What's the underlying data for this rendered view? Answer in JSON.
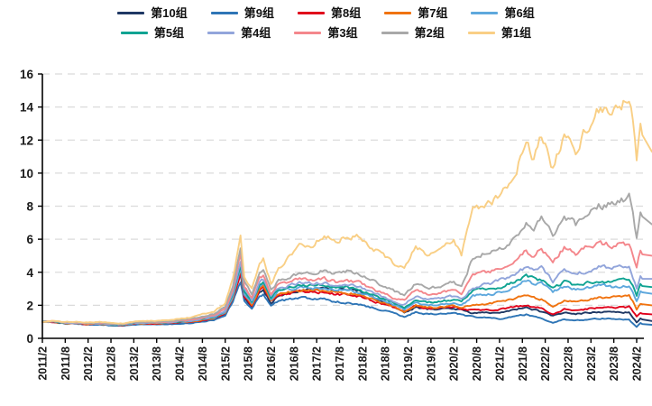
{
  "chart_data": {
    "type": "line",
    "title": "",
    "xlabel": "",
    "ylabel": "",
    "ylim": [
      0,
      16
    ],
    "y_ticks": [
      0,
      2,
      4,
      6,
      8,
      10,
      12,
      14,
      16
    ],
    "x_tick_labels": [
      "2011/2",
      "2011/8",
      "2012/2",
      "2012/8",
      "2013/2",
      "2013/8",
      "2014/2",
      "2014/8",
      "2015/2",
      "2015/8",
      "2016/2",
      "2016/8",
      "2017/2",
      "2017/8",
      "2018/2",
      "2018/8",
      "2019/2",
      "2019/8",
      "2020/2",
      "2020/8",
      "2021/2",
      "2021/8",
      "2022/2",
      "2022/8",
      "2023/2",
      "2023/8",
      "2024/2"
    ],
    "legend_position": "top",
    "legend_rows": [
      [
        "第10组",
        "第9组",
        "第8组",
        "第7组",
        "第6组"
      ],
      [
        "第5组",
        "第4组",
        "第3组",
        "第2组",
        "第1组"
      ]
    ],
    "grid": "horizontal-dashed",
    "grid_color": "#DBDBDB",
    "axis_color": "#000000",
    "x": [
      "2011/2",
      "2011/5",
      "2011/8",
      "2011/11",
      "2012/2",
      "2012/5",
      "2012/8",
      "2012/11",
      "2013/2",
      "2013/5",
      "2013/8",
      "2013/11",
      "2014/2",
      "2014/5",
      "2014/8",
      "2014/11",
      "2015/2",
      "2015/4",
      "2015/6",
      "2015/7",
      "2015/9",
      "2015/11",
      "2015/12",
      "2016/2",
      "2016/4",
      "2016/7",
      "2016/10",
      "2017/1",
      "2017/4",
      "2017/7",
      "2017/10",
      "2018/1",
      "2018/4",
      "2018/7",
      "2018/10",
      "2019/1",
      "2019/4",
      "2019/7",
      "2019/10",
      "2020/2",
      "2020/4",
      "2020/7",
      "2020/9",
      "2020/12",
      "2021/2",
      "2021/5",
      "2021/9",
      "2021/11",
      "2022/1",
      "2022/4",
      "2022/7",
      "2022/10",
      "2023/1",
      "2023/4",
      "2023/8",
      "2023/12",
      "2024/1",
      "2024/2",
      "2024/3",
      "2024/4"
    ],
    "series": [
      {
        "name": "第10组",
        "color": "#1F3864",
        "values": [
          1.0,
          0.98,
          0.9,
          0.89,
          0.84,
          0.86,
          0.79,
          0.77,
          0.86,
          0.88,
          0.87,
          0.9,
          0.94,
          0.96,
          1.07,
          1.17,
          1.47,
          2.35,
          3.8,
          2.4,
          1.9,
          2.8,
          2.95,
          2.15,
          2.6,
          2.75,
          2.9,
          2.95,
          3.1,
          2.95,
          3.0,
          2.85,
          2.55,
          2.25,
          1.98,
          1.52,
          1.88,
          1.76,
          1.77,
          1.82,
          1.72,
          1.5,
          1.55,
          1.55,
          1.6,
          1.7,
          1.85,
          1.75,
          1.6,
          1.35,
          1.55,
          1.48,
          1.55,
          1.6,
          1.6,
          1.55,
          1.2,
          0.95,
          1.2,
          1.05
        ]
      },
      {
        "name": "第9组",
        "color": "#2E75B6",
        "values": [
          1.0,
          0.97,
          0.89,
          0.87,
          0.82,
          0.84,
          0.77,
          0.75,
          0.83,
          0.84,
          0.83,
          0.86,
          0.89,
          0.91,
          1.01,
          1.1,
          1.38,
          2.2,
          3.45,
          2.2,
          1.75,
          2.55,
          2.66,
          1.95,
          2.3,
          2.36,
          2.42,
          2.36,
          2.35,
          2.2,
          2.18,
          2.06,
          1.9,
          1.72,
          1.55,
          1.28,
          1.58,
          1.46,
          1.47,
          1.52,
          1.44,
          1.3,
          1.3,
          1.25,
          1.2,
          1.3,
          1.45,
          1.35,
          1.2,
          0.95,
          1.15,
          1.08,
          1.15,
          1.2,
          1.2,
          1.15,
          0.9,
          0.7,
          0.95,
          0.82
        ]
      },
      {
        "name": "第8组",
        "color": "#E0001B",
        "values": [
          1.0,
          0.99,
          0.91,
          0.9,
          0.85,
          0.88,
          0.81,
          0.79,
          0.88,
          0.9,
          0.89,
          0.92,
          0.96,
          0.98,
          1.1,
          1.2,
          1.51,
          2.42,
          4.0,
          2.52,
          1.97,
          2.92,
          3.06,
          2.21,
          2.65,
          2.75,
          2.84,
          2.8,
          2.82,
          2.66,
          2.67,
          2.55,
          2.33,
          2.11,
          1.89,
          1.57,
          1.95,
          1.8,
          1.82,
          1.9,
          1.8,
          1.7,
          1.72,
          1.7,
          1.75,
          1.85,
          2.0,
          1.9,
          1.8,
          1.5,
          1.75,
          1.68,
          1.78,
          1.85,
          1.85,
          1.9,
          1.6,
          1.3,
          1.55,
          1.45
        ]
      },
      {
        "name": "第7组",
        "color": "#F07310",
        "values": [
          1.0,
          1.0,
          0.92,
          0.91,
          0.86,
          0.89,
          0.82,
          0.8,
          0.89,
          0.91,
          0.9,
          0.93,
          0.98,
          1.0,
          1.12,
          1.23,
          1.55,
          2.5,
          4.15,
          2.6,
          2.04,
          3.02,
          3.16,
          2.28,
          2.73,
          2.84,
          2.94,
          2.9,
          2.92,
          2.76,
          2.77,
          2.65,
          2.42,
          2.19,
          1.96,
          1.63,
          2.0,
          1.86,
          1.88,
          1.97,
          1.86,
          2.0,
          2.05,
          2.1,
          2.2,
          2.35,
          2.6,
          2.45,
          2.35,
          1.95,
          2.3,
          2.2,
          2.35,
          2.45,
          2.5,
          2.55,
          2.2,
          1.75,
          2.15,
          2.0
        ]
      },
      {
        "name": "第6组",
        "color": "#5EA8DD",
        "values": [
          1.0,
          1.0,
          0.93,
          0.92,
          0.87,
          0.9,
          0.83,
          0.81,
          0.9,
          0.92,
          0.92,
          0.95,
          1.0,
          1.03,
          1.15,
          1.26,
          1.6,
          2.6,
          4.35,
          2.72,
          2.12,
          3.15,
          3.3,
          2.37,
          2.85,
          2.97,
          3.08,
          3.04,
          3.07,
          2.9,
          2.92,
          2.8,
          2.56,
          2.31,
          2.07,
          1.74,
          2.15,
          2.0,
          2.02,
          2.12,
          2.0,
          2.55,
          2.62,
          2.7,
          2.8,
          3.0,
          3.5,
          3.3,
          3.3,
          2.8,
          3.15,
          2.95,
          3.1,
          3.2,
          3.1,
          3.15,
          2.8,
          2.25,
          2.85,
          2.7
        ]
      },
      {
        "name": "第5组",
        "color": "#0FA392",
        "values": [
          1.0,
          1.01,
          0.93,
          0.93,
          0.88,
          0.91,
          0.84,
          0.82,
          0.92,
          0.94,
          0.93,
          0.97,
          1.02,
          1.05,
          1.18,
          1.3,
          1.65,
          2.7,
          4.55,
          2.85,
          2.2,
          3.28,
          3.45,
          2.46,
          2.97,
          3.1,
          3.22,
          3.18,
          3.22,
          3.05,
          3.08,
          2.95,
          2.7,
          2.44,
          2.18,
          1.9,
          2.35,
          2.17,
          2.2,
          2.33,
          2.18,
          2.85,
          2.92,
          3.0,
          3.1,
          3.35,
          3.8,
          3.6,
          3.5,
          3.0,
          3.4,
          3.2,
          3.4,
          3.5,
          3.45,
          3.5,
          3.1,
          2.6,
          3.3,
          3.1
        ]
      },
      {
        "name": "第4组",
        "color": "#92A5DB",
        "values": [
          1.0,
          1.01,
          0.94,
          0.94,
          0.89,
          0.92,
          0.85,
          0.83,
          0.93,
          0.95,
          0.95,
          0.99,
          1.04,
          1.07,
          1.21,
          1.33,
          1.7,
          2.8,
          4.75,
          2.95,
          2.28,
          3.4,
          3.58,
          2.55,
          3.08,
          3.22,
          3.35,
          3.32,
          3.38,
          3.2,
          3.25,
          3.12,
          2.85,
          2.57,
          2.3,
          2.05,
          2.55,
          2.35,
          2.38,
          2.55,
          2.37,
          3.1,
          3.2,
          3.35,
          3.5,
          3.75,
          4.3,
          4.05,
          4.3,
          3.45,
          4.1,
          3.8,
          4.1,
          4.3,
          4.3,
          4.35,
          3.7,
          3.05,
          3.85,
          3.6
        ]
      },
      {
        "name": "第3组",
        "color": "#F4878C",
        "values": [
          1.0,
          1.02,
          0.95,
          0.95,
          0.9,
          0.94,
          0.87,
          0.85,
          0.95,
          0.97,
          0.97,
          1.01,
          1.07,
          1.11,
          1.26,
          1.39,
          1.78,
          2.95,
          5.1,
          3.15,
          2.42,
          3.62,
          3.8,
          2.7,
          3.28,
          3.45,
          3.6,
          3.55,
          3.6,
          3.42,
          3.48,
          3.35,
          3.05,
          2.75,
          2.48,
          2.28,
          2.9,
          2.7,
          2.75,
          2.95,
          2.72,
          3.75,
          3.9,
          4.05,
          4.25,
          4.6,
          5.3,
          5.0,
          5.4,
          4.7,
          5.5,
          5.15,
          5.5,
          5.7,
          5.65,
          5.75,
          5.0,
          4.3,
          5.35,
          5.0
        ]
      },
      {
        "name": "第2组",
        "color": "#A8A8A8",
        "values": [
          1.0,
          1.03,
          0.96,
          0.97,
          0.92,
          0.96,
          0.89,
          0.87,
          0.98,
          1.0,
          1.0,
          1.05,
          1.12,
          1.16,
          1.33,
          1.47,
          1.9,
          3.2,
          5.55,
          3.4,
          2.6,
          3.9,
          4.1,
          2.9,
          3.55,
          3.75,
          3.95,
          3.95,
          4.1,
          3.95,
          4.05,
          3.95,
          3.6,
          3.25,
          2.9,
          2.62,
          3.3,
          3.05,
          3.1,
          3.4,
          3.1,
          4.9,
          5.1,
          5.2,
          5.4,
          5.9,
          7.0,
          6.6,
          7.2,
          6.3,
          7.5,
          6.9,
          7.6,
          8.0,
          8.1,
          8.55,
          7.4,
          6.1,
          7.7,
          6.9
        ]
      },
      {
        "name": "第1组",
        "color": "#F9CF85",
        "values": [
          1.0,
          1.05,
          0.98,
          1.0,
          0.95,
          1.0,
          0.92,
          0.9,
          1.02,
          1.05,
          1.05,
          1.1,
          1.2,
          1.25,
          1.45,
          1.6,
          2.1,
          3.6,
          6.2,
          3.8,
          3.0,
          4.5,
          4.8,
          3.3,
          4.2,
          5.0,
          5.6,
          5.7,
          6.3,
          5.9,
          6.2,
          6.1,
          5.65,
          5.1,
          4.6,
          4.15,
          5.6,
          5.1,
          5.3,
          5.9,
          5.0,
          8.2,
          8.0,
          8.3,
          8.6,
          9.3,
          11.9,
          10.8,
          12.3,
          10.2,
          12.5,
          11.3,
          12.8,
          13.8,
          13.9,
          14.6,
          13.2,
          10.6,
          12.9,
          11.3
        ]
      }
    ]
  }
}
